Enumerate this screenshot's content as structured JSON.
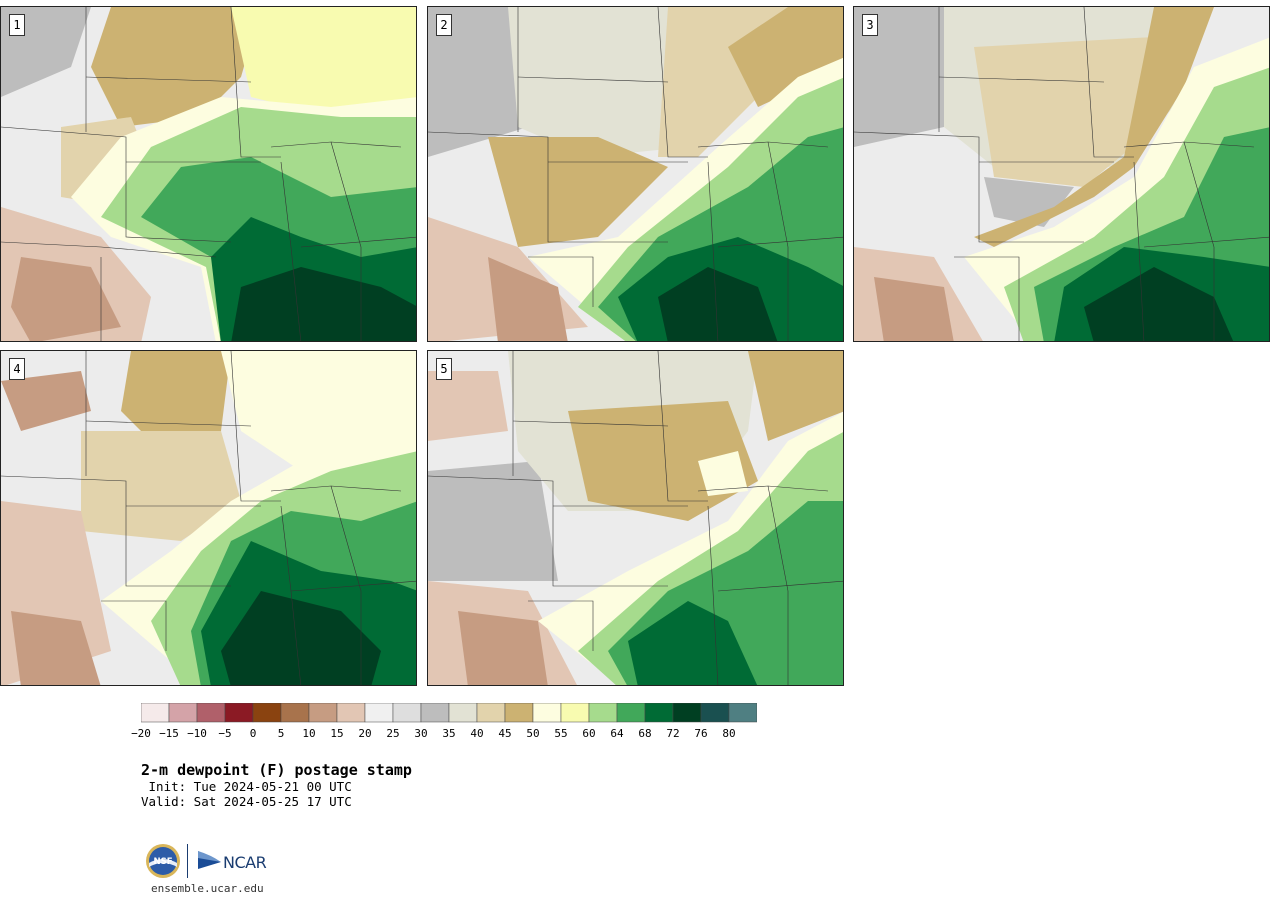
{
  "panels": [
    {
      "label": "1"
    },
    {
      "label": "2"
    },
    {
      "label": "3"
    },
    {
      "label": "4"
    },
    {
      "label": "5"
    }
  ],
  "colorbar": {
    "colors": [
      "#f5eaea",
      "#d4a3a8",
      "#b0606a",
      "#8b1a24",
      "#8a4310",
      "#a8734c",
      "#c69c82",
      "#e2c6b4",
      "#f0f0f0",
      "#dedede",
      "#bdbdbd",
      "#e2e2d4",
      "#e2d3ac",
      "#ccb272",
      "#fdfde0",
      "#f8fbb0",
      "#a6db8d",
      "#41a85a",
      "#006b35",
      "#003f22",
      "#1a5050",
      "#4f7f82"
    ],
    "ticks": [
      "−20",
      "−15",
      "−10",
      "−5",
      "0",
      "5",
      "10",
      "15",
      "20",
      "25",
      "30",
      "35",
      "40",
      "45",
      "50",
      "55",
      "60",
      "64",
      "68",
      "72",
      "76",
      "80"
    ]
  },
  "title": "2-m dewpoint (F) postage stamp",
  "init": " Init: Tue 2024-05-21 00 UTC",
  "valid": "Valid: Sat 2024-05-25 17 UTC",
  "logo_nsf": "NSF",
  "logo_ncar": "NCAR",
  "url": "ensemble.ucar.edu"
}
